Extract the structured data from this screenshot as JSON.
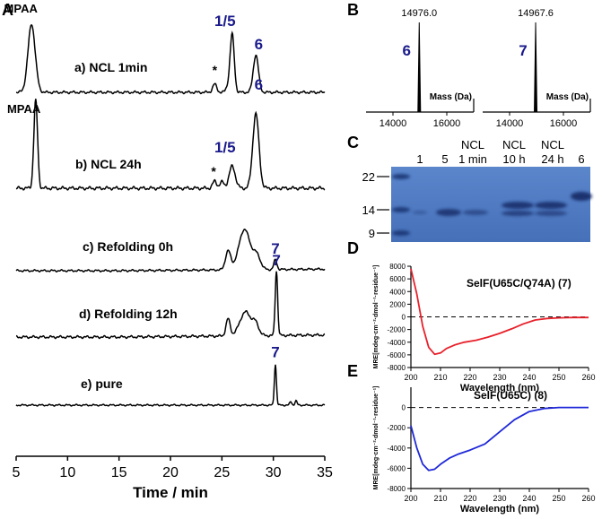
{
  "panel_labels": {
    "A": "A",
    "B": "B",
    "C": "C",
    "D": "D",
    "E": "E"
  },
  "colors": {
    "accent": "#1a1a8c",
    "red": "#e8202a",
    "blue": "#1f28d8",
    "gel": "#4f7ac0"
  },
  "chart_data": [
    {
      "type": "line",
      "panel": "A",
      "title": "",
      "xlabel": "Time / min",
      "xlim": [
        5,
        35
      ],
      "xticks": [
        5,
        10,
        15,
        20,
        25,
        30,
        35
      ],
      "traces": [
        {
          "label": "a) NCL 1min",
          "annotations": [
            {
              "text": "MPAA",
              "x": 6.5
            },
            {
              "text": "1/5",
              "x": 26.0
            },
            {
              "text": "6",
              "x": 28.4
            },
            {
              "text": "*",
              "x": 24.3
            }
          ],
          "peaks": [
            [
              6.5,
              1.0,
              0.35
            ],
            [
              24.3,
              0.12,
              0.2
            ],
            [
              25.6,
              0.08,
              0.2
            ],
            [
              26.0,
              0.85,
              0.2
            ],
            [
              28.3,
              0.55,
              0.25
            ]
          ]
        },
        {
          "label": "b) NCL 24h",
          "annotations": [
            {
              "text": "MPAA",
              "x": 6.8
            },
            {
              "text": "1/5",
              "x": 26.0
            },
            {
              "text": "6",
              "x": 28.4
            },
            {
              "text": "*",
              "x": 24.2
            }
          ],
          "peaks": [
            [
              6.9,
              1.0,
              0.18
            ],
            [
              24.3,
              0.08,
              0.2
            ],
            [
              25.0,
              0.07,
              0.2
            ],
            [
              26.0,
              0.25,
              0.3
            ],
            [
              28.3,
              0.85,
              0.3
            ]
          ]
        },
        {
          "label": "c) Refolding 0h",
          "annotations": [
            {
              "text": "7",
              "x": 30.2
            }
          ],
          "peaks": [
            [
              25.6,
              0.35,
              0.25
            ],
            [
              27.2,
              0.75,
              0.55
            ],
            [
              28.4,
              0.25,
              0.35
            ],
            [
              30.2,
              0.18,
              0.15
            ]
          ]
        },
        {
          "label": "d) Refolding 12h",
          "annotations": [
            {
              "text": "7",
              "x": 30.3
            }
          ],
          "peaks": [
            [
              25.6,
              0.25,
              0.2
            ],
            [
              27.3,
              0.35,
              0.55
            ],
            [
              28.3,
              0.15,
              0.3
            ],
            [
              30.3,
              0.95,
              0.12
            ]
          ]
        },
        {
          "label": "e) pure",
          "annotations": [
            {
              "text": "7",
              "x": 30.2
            }
          ],
          "peaks": [
            [
              30.2,
              0.95,
              0.1
            ],
            [
              31.7,
              0.08,
              0.1
            ],
            [
              32.2,
              0.1,
              0.1
            ]
          ]
        }
      ]
    },
    {
      "type": "bar",
      "panel": "B",
      "title": "",
      "xlabel": "Mass (Da)",
      "subplots": [
        {
          "compound": "6",
          "mass_label": "14976.0",
          "peak_mass": 14976.0,
          "xlim": [
            13000,
            17000
          ],
          "xticks": [
            14000,
            16000
          ]
        },
        {
          "compound": "7",
          "mass_label": "14967.6",
          "peak_mass": 14967.6,
          "xlim": [
            13000,
            17000
          ],
          "xticks": [
            14000,
            16000
          ]
        }
      ]
    },
    {
      "type": "table",
      "panel": "C",
      "marker_labels": [
        "22",
        "14",
        "9"
      ],
      "lane_labels": [
        [
          "1"
        ],
        [
          "5"
        ],
        [
          "NCL",
          "1 min"
        ],
        [
          "NCL",
          "10 h"
        ],
        [
          "NCL",
          "24 h"
        ],
        [
          "6"
        ]
      ]
    },
    {
      "type": "line",
      "panel": "D",
      "series_label": "SelF(U65C/Q74A) (7)",
      "xlabel": "Wavelength (nm)",
      "ylabel": "MRE[mdeg·cm⁻²·dmol⁻¹·residue⁻¹]",
      "xlim": [
        200,
        260
      ],
      "ylim": [
        -8000,
        8000
      ],
      "xticks": [
        200,
        210,
        220,
        230,
        240,
        250,
        260
      ],
      "yticks": [
        8000,
        6000,
        4000,
        2000,
        0,
        -2000,
        -4000,
        -6000,
        -8000
      ],
      "x": [
        200,
        202,
        204,
        206,
        208,
        210,
        212,
        215,
        218,
        222,
        226,
        230,
        234,
        238,
        242,
        246,
        250,
        255,
        260
      ],
      "y": [
        7600,
        3600,
        -1500,
        -4800,
        -5900,
        -5700,
        -5000,
        -4400,
        -4000,
        -3700,
        -3200,
        -2600,
        -1900,
        -1100,
        -500,
        -250,
        -150,
        -100,
        -100
      ]
    },
    {
      "type": "line",
      "panel": "E",
      "series_label": "SelF(U65C) (8)",
      "xlabel": "Wavelength (nm)",
      "ylabel": "MRE[mdeg·cm⁻²·dmol⁻¹·residue⁻¹]",
      "xlim": [
        200,
        260
      ],
      "ylim": [
        -8000,
        2000
      ],
      "xticks": [
        200,
        210,
        220,
        230,
        240,
        250,
        260
      ],
      "yticks": [
        0,
        -2000,
        -4000,
        -6000,
        -8000
      ],
      "x": [
        200,
        202,
        204,
        206,
        208,
        210,
        213,
        216,
        220,
        225,
        230,
        235,
        240,
        245,
        250,
        255,
        260
      ],
      "y": [
        -1800,
        -4000,
        -5600,
        -6200,
        -6100,
        -5600,
        -5000,
        -4600,
        -4200,
        -3600,
        -2400,
        -1200,
        -400,
        -100,
        0,
        0,
        0
      ]
    }
  ]
}
